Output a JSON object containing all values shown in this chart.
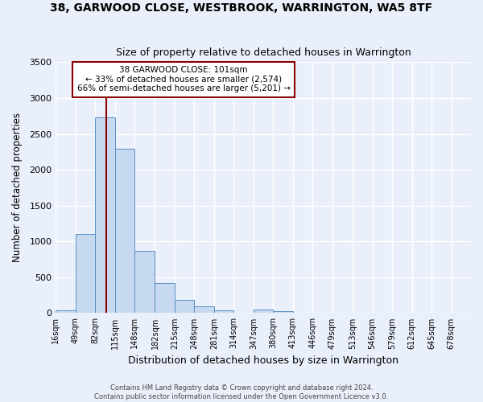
{
  "title1": "38, GARWOOD CLOSE, WESTBROOK, WARRINGTON, WA5 8TF",
  "title2": "Size of property relative to detached houses in Warrington",
  "xlabel": "Distribution of detached houses by size in Warrington",
  "ylabel": "Number of detached properties",
  "bar_color": "#c6d9f0",
  "bar_edge_color": "#5a8fc3",
  "bin_labels": [
    "16sqm",
    "49sqm",
    "82sqm",
    "115sqm",
    "148sqm",
    "182sqm",
    "215sqm",
    "248sqm",
    "281sqm",
    "314sqm",
    "347sqm",
    "380sqm",
    "413sqm",
    "446sqm",
    "479sqm",
    "513sqm",
    "546sqm",
    "579sqm",
    "612sqm",
    "645sqm",
    "678sqm"
  ],
  "bar_values": [
    40,
    1100,
    2730,
    2290,
    870,
    420,
    185,
    95,
    35,
    0,
    55,
    30,
    10,
    0,
    0,
    0,
    0,
    0,
    0,
    0,
    0
  ],
  "property_line_x": 101,
  "property_line_color": "#8b0000",
  "annotation_title": "38 GARWOOD CLOSE: 101sqm",
  "annotation_line1": "← 33% of detached houses are smaller (2,574)",
  "annotation_line2": "66% of semi-detached houses are larger (5,201) →",
  "annotation_box_color": "#ffffff",
  "annotation_box_edge": "#8b0000",
  "ylim": [
    0,
    3500
  ],
  "yticks": [
    0,
    500,
    1000,
    1500,
    2000,
    2500,
    3000,
    3500
  ],
  "footnote1": "Contains HM Land Registry data © Crown copyright and database right 2024.",
  "footnote2": "Contains public sector information licensed under the Open Government Licence v3.0.",
  "background_color": "#eaf0fb",
  "grid_color": "#ffffff",
  "bin_edges": [
    16,
    49,
    82,
    115,
    148,
    182,
    215,
    248,
    281,
    314,
    347,
    380,
    413,
    446,
    479,
    513,
    546,
    579,
    612,
    645,
    678,
    711
  ]
}
